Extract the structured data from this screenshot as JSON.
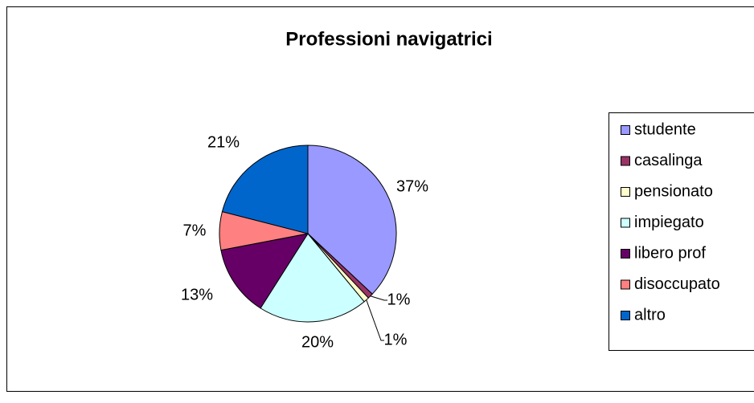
{
  "chart_data": {
    "type": "pie",
    "title": "Professioni navigatrici",
    "categories": [
      "studente",
      "casalinga",
      "pensionato",
      "impiegato",
      "libero prof",
      "disoccupato",
      "altro"
    ],
    "values": [
      37,
      1,
      1,
      20,
      13,
      7,
      21
    ],
    "value_labels": [
      "37%",
      "1%",
      "1%",
      "20%",
      "13%",
      "7%",
      "21%"
    ],
    "colors": [
      "#9999ff",
      "#993366",
      "#ffffcc",
      "#ccffff",
      "#660066",
      "#ff8080",
      "#0066cc"
    ],
    "legend": "right"
  }
}
